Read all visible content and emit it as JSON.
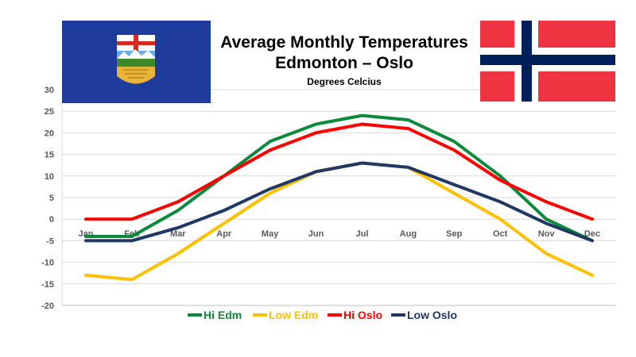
{
  "chart_data": {
    "type": "line",
    "title": "Average Monthly Temperatures",
    "title_line2": "Edmonton – Oslo",
    "subtitle": "Degrees Celcius",
    "xlabel": "",
    "ylabel": "",
    "categories": [
      "Jan",
      "Feb",
      "Mar",
      "Apr",
      "May",
      "Jun",
      "Jul",
      "Aug",
      "Sep",
      "Oct",
      "Nov",
      "Dec"
    ],
    "ylim": [
      -20,
      30
    ],
    "yticks": [
      -20,
      -15,
      -10,
      -5,
      0,
      5,
      10,
      15,
      20,
      25,
      30
    ],
    "grid": true,
    "legend_position": "bottom",
    "series": [
      {
        "name": "Hi Edm",
        "color": "#0a8a3a",
        "values": [
          -4,
          -4,
          2,
          10,
          18,
          22,
          24,
          23,
          18,
          10,
          0,
          -5
        ]
      },
      {
        "name": "Low Edm",
        "color": "#ffc000",
        "values": [
          -13,
          -14,
          -8,
          -1,
          6,
          11,
          13,
          12,
          6,
          0,
          -8,
          -13
        ]
      },
      {
        "name": "Hi Oslo",
        "color": "#ff0000",
        "values": [
          0,
          0,
          4,
          10,
          16,
          20,
          22,
          21,
          16,
          9,
          4,
          0
        ]
      },
      {
        "name": "Low Oslo",
        "color": "#1f3864",
        "values": [
          -5,
          -5,
          -2,
          2,
          7,
          11,
          13,
          12,
          8,
          4,
          -1,
          -5
        ]
      }
    ]
  },
  "decor": {
    "left_flag": "alberta-flag-icon",
    "right_flag": "norway-flag-icon",
    "alberta_blue": "#1f3b9b",
    "norway_red": "#ef3340",
    "norway_blue": "#00205b"
  }
}
